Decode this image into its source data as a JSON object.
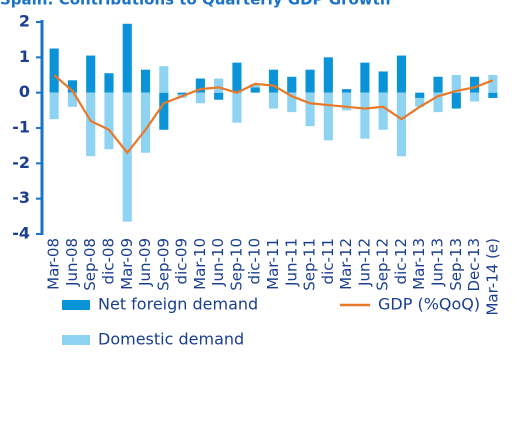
{
  "chart_data": {
    "type": "bar",
    "title": "Spain: Contributions to Quarterly GDP Growth",
    "categories": [
      "Mar-08",
      "Jun-08",
      "Sep-08",
      "dic-08",
      "Mar-09",
      "Jun-09",
      "Sep-09",
      "dic-09",
      "Mar-10",
      "Jun-10",
      "Sep-10",
      "dic-10",
      "Mar-11",
      "Jun-11",
      "Sep-11",
      "dic-11",
      "Mar-12",
      "Jun-12",
      "Sep-12",
      "dic-12",
      "Mar-13",
      "Jun-13",
      "Sep-13",
      "Dec-13",
      "Mar-14 (e)"
    ],
    "series": [
      {
        "name": "Net foreign demand",
        "color": "#0a93d6",
        "values": [
          1.25,
          0.35,
          1.05,
          0.55,
          1.95,
          0.65,
          -1.05,
          -0.05,
          0.4,
          -0.2,
          0.85,
          0.15,
          0.65,
          0.45,
          0.65,
          1.0,
          0.1,
          0.85,
          0.6,
          1.05,
          -0.15,
          0.45,
          -0.45,
          0.45,
          -0.15
        ]
      },
      {
        "name": "Domestic demand",
        "color": "#8fd3f2",
        "values": [
          -0.75,
          -0.4,
          -1.8,
          -1.6,
          -3.65,
          -1.7,
          0.75,
          -0.1,
          -0.3,
          0.4,
          -0.85,
          0.1,
          -0.45,
          -0.55,
          -0.95,
          -1.35,
          -0.5,
          -1.3,
          -1.05,
          -1.8,
          -0.25,
          -0.55,
          0.5,
          -0.25,
          0.5
        ]
      },
      {
        "name": "GDP (%QoQ)",
        "type": "line",
        "color": "#e8792a",
        "values": [
          0.5,
          0.05,
          -0.8,
          -1.05,
          -1.7,
          -1.05,
          -0.3,
          -0.1,
          0.1,
          0.15,
          0.0,
          0.25,
          0.2,
          -0.1,
          -0.3,
          -0.35,
          -0.4,
          -0.45,
          -0.4,
          -0.75,
          -0.4,
          -0.1,
          0.05,
          0.15,
          0.35
        ]
      }
    ],
    "ylim": [
      -4,
      2
    ],
    "yticks": [
      -4,
      -3,
      -2,
      -1,
      0,
      1,
      2
    ],
    "grid": false
  }
}
